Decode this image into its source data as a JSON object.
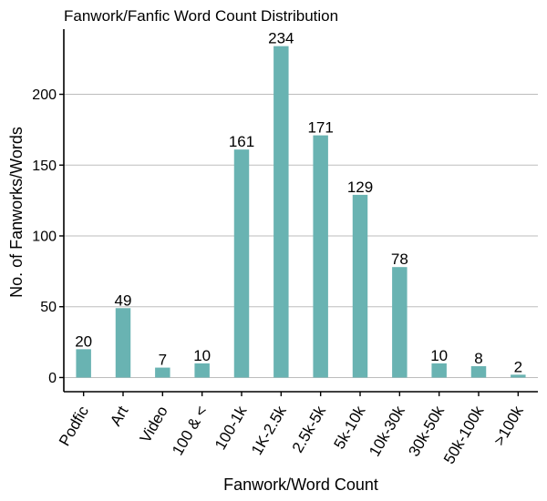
{
  "chart_data": {
    "type": "bar",
    "title": "Fanwork/Fanfic Word Count Distribution",
    "xlabel": "Fanwork/Word Count",
    "ylabel": "No. of Fanworks/Words",
    "categories": [
      "Podfic",
      "Art",
      "Video",
      "100 & <",
      "100-1k",
      "1K-2.5k",
      "2.5k-5k",
      "5k-10k",
      "10k-30k",
      "30k-50k",
      "50k-100k",
      ">100k"
    ],
    "values": [
      20,
      49,
      7,
      10,
      161,
      234,
      171,
      129,
      78,
      10,
      8,
      2
    ],
    "data_labels": [
      "20",
      "49",
      "7",
      "10",
      "161",
      "234",
      "171",
      "129",
      "78",
      "10",
      "8",
      "2"
    ],
    "ylim": [
      -10,
      246
    ],
    "yticks": [
      0,
      50,
      100,
      150,
      200
    ],
    "ytick_labels": [
      "0",
      "50",
      "100",
      "150",
      "200"
    ],
    "grid": "horizontal major",
    "bar_color": "#69b3b2"
  }
}
